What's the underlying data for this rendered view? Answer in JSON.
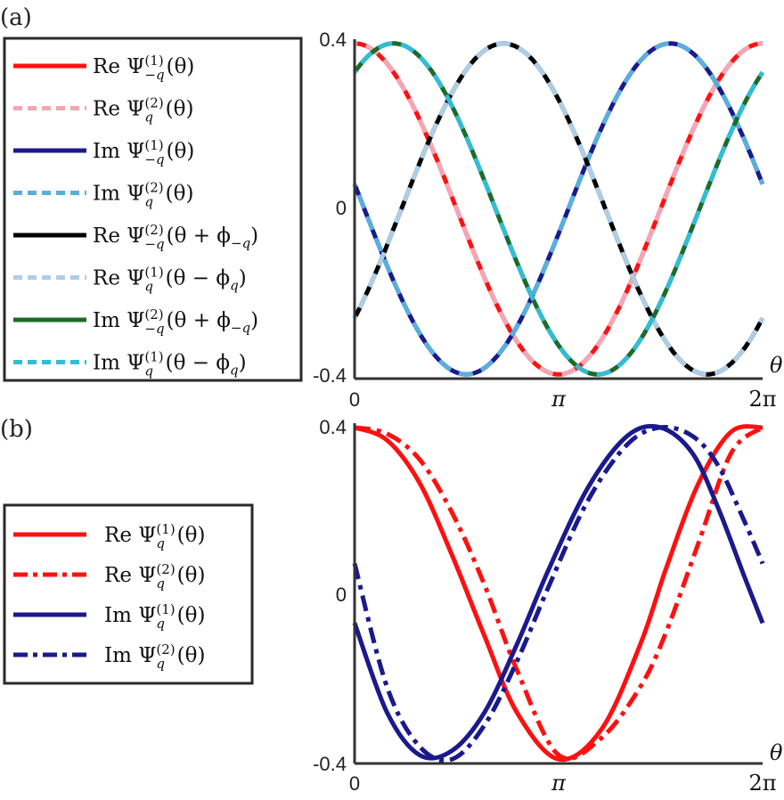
{
  "panels": [
    {
      "label": "(a)",
      "x_ticks": [
        "0",
        "π",
        "2π"
      ],
      "y_ticks": [
        "0.4",
        "0",
        "-0.4"
      ],
      "x_axis_symbol": "θ",
      "legend_entries": [
        {
          "prefix": "Re",
          "sup": "(1)",
          "sub": "−q",
          "arg": "(θ)"
        },
        {
          "prefix": "Re",
          "sup": "(2)",
          "sub": "q",
          "arg": "(θ)"
        },
        {
          "prefix": "Im",
          "sup": "(1)",
          "sub": "−q",
          "arg": "(θ)"
        },
        {
          "prefix": "Im",
          "sup": "(2)",
          "sub": "q",
          "arg": "(θ)"
        },
        {
          "prefix": "Re",
          "sup": "(2)",
          "sub": "−q",
          "arg": "(θ + ϕ",
          "arg_sub": "−q",
          "arg_end": ")"
        },
        {
          "prefix": "Re",
          "sup": "(1)",
          "sub": "q",
          "arg": "(θ − ϕ",
          "arg_sub": "q",
          "arg_end": ")"
        },
        {
          "prefix": "Im",
          "sup": "(2)",
          "sub": "−q",
          "arg": "(θ + ϕ",
          "arg_sub": "−q",
          "arg_end": ")"
        },
        {
          "prefix": "Im",
          "sup": "(1)",
          "sub": "q",
          "arg": "(θ − ϕ",
          "arg_sub": "q",
          "arg_end": ")"
        }
      ]
    },
    {
      "label": "(b)",
      "x_ticks": [
        "0",
        "π",
        "2π"
      ],
      "y_ticks": [
        "0.4",
        "0",
        "-0.4"
      ],
      "x_axis_symbol": "θ",
      "legend_entries": [
        {
          "prefix": "Re",
          "sup": "(1)",
          "sub": "q",
          "arg": "(θ)"
        },
        {
          "prefix": "Re",
          "sup": "(2)",
          "sub": "q",
          "arg": "(θ)"
        },
        {
          "prefix": "Im",
          "sup": "(1)",
          "sub": "q",
          "arg": "(θ)"
        },
        {
          "prefix": "Im",
          "sup": "(2)",
          "sub": "q",
          "arg": "(θ)"
        }
      ]
    }
  ],
  "chart_data": [
    {
      "type": "line",
      "xlim": [
        0,
        6.2832
      ],
      "ylim": [
        -0.4,
        0.4
      ],
      "grid": false,
      "legend_placement": "left, outside plot",
      "series": [
        {
          "color": "#ff1010",
          "style": "solid",
          "phase": 0.0
        },
        {
          "color": "#f4a6b4",
          "style": "dashed",
          "phase": 0.0
        },
        {
          "color": "#1a1a8c",
          "style": "solid",
          "phase": -1.4208
        },
        {
          "color": "#5aaedc",
          "style": "dashed",
          "phase": -1.4208
        },
        {
          "color": "#000000",
          "style": "solid",
          "phase": 2.2916
        },
        {
          "color": "#aecde6",
          "style": "dashed",
          "phase": 2.2916
        },
        {
          "color": "#1d6b2a",
          "style": "solid",
          "phase": 0.6
        },
        {
          "color": "#33bcd6",
          "style": "dashed",
          "phase": 0.6
        }
      ],
      "series_model": {
        "form": "y = A*cos(x - phase)",
        "amplitude": 0.39
      }
    },
    {
      "type": "line",
      "xlim": [
        0,
        6.2832
      ],
      "ylim": [
        -0.4,
        0.4
      ],
      "grid": false,
      "legend_placement": "left, outside plot",
      "series": [
        {
          "color": "#ff1010",
          "style": "solid",
          "x": [
            0,
            0.5,
            1.0,
            1.5,
            2.0,
            2.5,
            3.14,
            3.8,
            4.4,
            4.8,
            5.3,
            5.8,
            6.2832
          ],
          "y": [
            0.39,
            0.36,
            0.26,
            0.09,
            -0.1,
            -0.28,
            -0.39,
            -0.32,
            -0.12,
            0.06,
            0.26,
            0.38,
            0.39
          ]
        },
        {
          "color": "#ff1010",
          "style": "dashdot",
          "x": [
            0,
            0.5,
            1.0,
            1.5,
            2.0,
            2.5,
            3.14,
            3.8,
            4.4,
            4.8,
            5.3,
            5.8,
            6.2832
          ],
          "y": [
            0.39,
            0.375,
            0.315,
            0.19,
            0.02,
            -0.18,
            -0.38,
            -0.34,
            -0.22,
            -0.09,
            0.12,
            0.33,
            0.39
          ]
        },
        {
          "color": "#1a1a8c",
          "style": "solid",
          "x": [
            0,
            0.5,
            1.0,
            1.5,
            2.0,
            2.5,
            3.0,
            3.6,
            4.2,
            4.71,
            5.2,
            5.6,
            6.0,
            6.2832
          ],
          "y": [
            -0.07,
            -0.28,
            -0.38,
            -0.37,
            -0.28,
            -0.12,
            0.06,
            0.25,
            0.37,
            0.39,
            0.33,
            0.2,
            0.04,
            -0.07
          ]
        },
        {
          "color": "#1a1a8c",
          "style": "dashdot",
          "x": [
            0,
            0.5,
            1.0,
            1.5,
            2.0,
            2.5,
            3.0,
            3.6,
            4.2,
            4.71,
            5.2,
            5.6,
            6.0,
            6.2832
          ],
          "y": [
            0.07,
            -0.22,
            -0.36,
            -0.39,
            -0.31,
            -0.16,
            0.02,
            0.22,
            0.35,
            0.39,
            0.37,
            0.3,
            0.17,
            0.07
          ]
        }
      ]
    }
  ]
}
